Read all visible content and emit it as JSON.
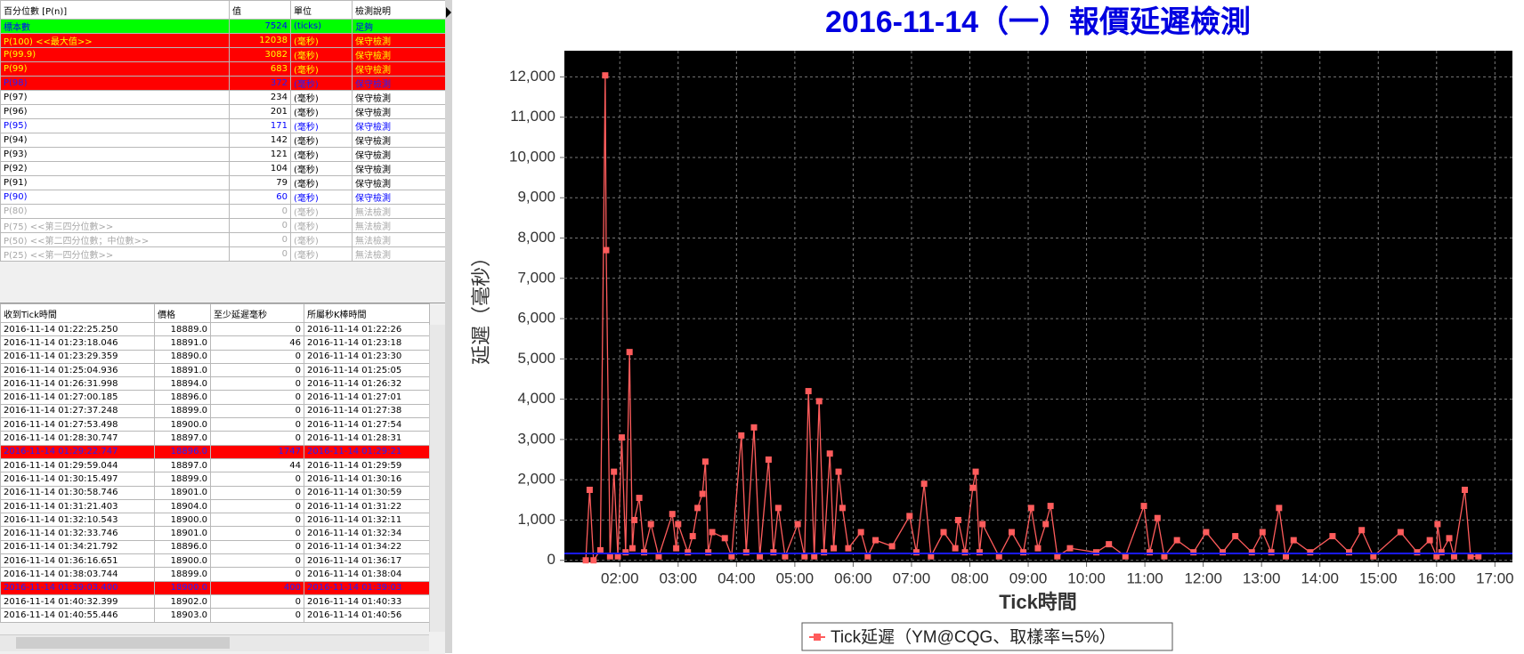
{
  "top_table": {
    "header": [
      "百分位數 [P(n)]",
      "值",
      "單位",
      "檢測說明"
    ],
    "rows": [
      [
        "標本數",
        7524,
        "(ticks)",
        "足夠"
      ],
      [
        "P(100)  <<最大值>>",
        12038,
        "(毫秒)",
        "保守檢測"
      ],
      [
        "P(99.9)",
        3082,
        "(毫秒)",
        "保守檢測"
      ],
      [
        "P(99)",
        683,
        "(毫秒)",
        "保守檢測"
      ],
      [
        "P(98)",
        372,
        "(毫秒)",
        "保守檢測"
      ],
      [
        "P(97)",
        234,
        "(毫秒)",
        "保守檢測"
      ],
      [
        "P(96)",
        201,
        "(毫秒)",
        "保守檢測"
      ],
      [
        "P(95)",
        171,
        "(毫秒)",
        "保守檢測"
      ],
      [
        "P(94)",
        142,
        "(毫秒)",
        "保守檢測"
      ],
      [
        "P(93)",
        121,
        "(毫秒)",
        "保守檢測"
      ],
      [
        "P(92)",
        104,
        "(毫秒)",
        "保守檢測"
      ],
      [
        "P(91)",
        79,
        "(毫秒)",
        "保守檢測"
      ],
      [
        "P(90)",
        60,
        "(毫秒)",
        "保守檢測"
      ],
      [
        "P(80)",
        0,
        "(毫秒)",
        "無法檢測"
      ],
      [
        "P(75)  <<第三四分位數>>",
        0,
        "(毫秒)",
        "無法檢測"
      ],
      [
        "P(50)  <<第二四分位數；中位數>>",
        0,
        "(毫秒)",
        "無法檢測"
      ],
      [
        "P(25)  <<第一四分位數>>",
        0,
        "(毫秒)",
        "無法檢測"
      ]
    ],
    "row_styles": [
      "green",
      "red",
      "red",
      "red",
      "red-blue",
      "normal",
      "normal",
      "blue",
      "normal",
      "normal",
      "normal",
      "normal",
      "blue",
      "gray",
      "gray",
      "gray",
      "gray"
    ]
  },
  "bottom_table": {
    "header": [
      "收到Tick時間",
      "價格",
      "至少延遲毫秒",
      "所屬秒K棒時間"
    ],
    "rows": [
      [
        "2016-11-14 01:22:25.250",
        "18889.0",
        0,
        "2016-11-14 01:22:26"
      ],
      [
        "2016-11-14 01:23:18.046",
        "18891.0",
        46,
        "2016-11-14 01:23:18"
      ],
      [
        "2016-11-14 01:23:29.359",
        "18890.0",
        0,
        "2016-11-14 01:23:30"
      ],
      [
        "2016-11-14 01:25:04.936",
        "18891.0",
        0,
        "2016-11-14 01:25:05"
      ],
      [
        "2016-11-14 01:26:31.998",
        "18894.0",
        0,
        "2016-11-14 01:26:32"
      ],
      [
        "2016-11-14 01:27:00.185",
        "18896.0",
        0,
        "2016-11-14 01:27:01"
      ],
      [
        "2016-11-14 01:27:37.248",
        "18899.0",
        0,
        "2016-11-14 01:27:38"
      ],
      [
        "2016-11-14 01:27:53.498",
        "18900.0",
        0,
        "2016-11-14 01:27:54"
      ],
      [
        "2016-11-14 01:28:30.747",
        "18897.0",
        0,
        "2016-11-14 01:28:31"
      ],
      [
        "2016-11-14 01:29:22.747",
        "18896.0",
        1747,
        "2016-11-14 01:29:21"
      ],
      [
        "2016-11-14 01:29:59.044",
        "18897.0",
        44,
        "2016-11-14 01:29:59"
      ],
      [
        "2016-11-14 01:30:15.497",
        "18899.0",
        0,
        "2016-11-14 01:30:16"
      ],
      [
        "2016-11-14 01:30:58.746",
        "18901.0",
        0,
        "2016-11-14 01:30:59"
      ],
      [
        "2016-11-14 01:31:21.403",
        "18904.0",
        0,
        "2016-11-14 01:31:22"
      ],
      [
        "2016-11-14 01:32:10.543",
        "18900.0",
        0,
        "2016-11-14 01:32:11"
      ],
      [
        "2016-11-14 01:32:33.746",
        "18901.0",
        0,
        "2016-11-14 01:32:34"
      ],
      [
        "2016-11-14 01:34:21.792",
        "18896.0",
        0,
        "2016-11-14 01:34:22"
      ],
      [
        "2016-11-14 01:36:16.651",
        "18900.0",
        0,
        "2016-11-14 01:36:17"
      ],
      [
        "2016-11-14 01:38:03.744",
        "18899.0",
        0,
        "2016-11-14 01:38:04"
      ],
      [
        "2016-11-14 01:39:03.400",
        "18900.0",
        400,
        "2016-11-14 01:39:03"
      ],
      [
        "2016-11-14 01:40:32.399",
        "18902.0",
        0,
        "2016-11-14 01:40:33"
      ],
      [
        "2016-11-14 01:40:55.446",
        "18903.0",
        0,
        "2016-11-14 01:40:56"
      ]
    ],
    "highlighted_rows": [
      9,
      19
    ]
  },
  "chart_data": {
    "type": "line",
    "title": "2016-11-14（一）報價延遲檢測",
    "x_label": "Tick時間",
    "y_label": "延遲（毫秒）",
    "x": [
      "01:25",
      "01:29",
      "01:33",
      "01:40",
      "01:45",
      "01:46",
      "01:50",
      "01:54",
      "01:58",
      "02:02",
      "02:06",
      "02:10",
      "02:13",
      "02:15",
      "02:20",
      "02:25",
      "02:32",
      "02:40",
      "02:54",
      "02:58",
      "03:00",
      "03:10",
      "03:15",
      "03:20",
      "03:25",
      "03:28",
      "03:31",
      "03:35",
      "03:48",
      "03:55",
      "04:05",
      "04:10",
      "04:18",
      "04:24",
      "04:33",
      "04:38",
      "04:43",
      "04:50",
      "05:03",
      "05:10",
      "05:14",
      "05:20",
      "05:25",
      "05:30",
      "05:36",
      "05:40",
      "05:45",
      "05:49",
      "05:55",
      "06:08",
      "06:15",
      "06:23",
      "06:40",
      "06:58",
      "07:05",
      "07:13",
      "07:20",
      "07:33",
      "07:45",
      "07:48",
      "07:55",
      "08:03",
      "08:06",
      "08:10",
      "08:13",
      "08:30",
      "08:43",
      "08:55",
      "09:03",
      "09:10",
      "09:18",
      "09:23",
      "09:30",
      "09:43",
      "10:10",
      "10:23",
      "10:40",
      "10:59",
      "11:05",
      "11:13",
      "11:20",
      "11:33",
      "11:50",
      "12:03",
      "12:20",
      "12:33",
      "12:50",
      "13:01",
      "13:10",
      "13:18",
      "13:25",
      "13:33",
      "13:50",
      "14:13",
      "14:30",
      "14:43",
      "14:55",
      "15:23",
      "15:40",
      "15:53",
      "16:00",
      "16:01",
      "16:05",
      "16:13",
      "16:18",
      "16:29",
      "16:35",
      "16:43"
    ],
    "series": [
      {
        "name": "Tick延遲（YM@CQG、取樣率≒5%）",
        "color": "#ff5c5c",
        "values": [
          0,
          1750,
          0,
          250,
          12038,
          7700,
          100,
          2200,
          100,
          3050,
          200,
          5170,
          300,
          1000,
          1550,
          200,
          900,
          100,
          1150,
          300,
          900,
          200,
          600,
          1300,
          1650,
          2450,
          200,
          700,
          550,
          100,
          3100,
          200,
          3300,
          100,
          2500,
          200,
          1300,
          100,
          900,
          100,
          4200,
          100,
          3950,
          200,
          2650,
          300,
          2200,
          1300,
          300,
          700,
          100,
          500,
          350,
          1100,
          200,
          1900,
          100,
          700,
          300,
          1000,
          200,
          1800,
          2200,
          200,
          900,
          100,
          700,
          200,
          1300,
          300,
          900,
          1350,
          100,
          300,
          200,
          400,
          100,
          1350,
          200,
          1050,
          100,
          500,
          200,
          700,
          200,
          600,
          200,
          700,
          200,
          1300,
          100,
          500,
          200,
          600,
          200,
          750,
          100,
          700,
          200,
          500,
          100,
          900,
          200,
          550,
          100,
          1750,
          100,
          100
        ]
      }
    ],
    "threshold": 171,
    "threshold_color": "#1a1aff",
    "xlim": [
      "01:03",
      "17:18"
    ],
    "xticks": [
      "02:00",
      "03:00",
      "04:00",
      "05:00",
      "06:00",
      "07:00",
      "08:00",
      "09:00",
      "10:00",
      "11:00",
      "12:00",
      "13:00",
      "14:00",
      "15:00",
      "16:00",
      "17:00"
    ],
    "ylim": [
      -50,
      12650
    ],
    "yticks": [
      0,
      {
        "value": 1000,
        "label": "1,000"
      },
      {
        "value": 2000,
        "label": "2,000"
      },
      {
        "value": 3000,
        "label": "3,000"
      },
      {
        "value": 4000,
        "label": "4,000"
      },
      {
        "value": 5000,
        "label": "5,000"
      },
      {
        "value": 6000,
        "label": "6,000"
      },
      {
        "value": 7000,
        "label": "7,000"
      },
      {
        "value": 8000,
        "label": "8,000"
      },
      {
        "value": 9000,
        "label": "9,000"
      },
      {
        "value": 10000,
        "label": "10,000"
      },
      {
        "value": 11000,
        "label": "11,000"
      },
      {
        "value": 12000,
        "label": "12,000"
      }
    ],
    "grid": true,
    "legend": "bottom"
  }
}
